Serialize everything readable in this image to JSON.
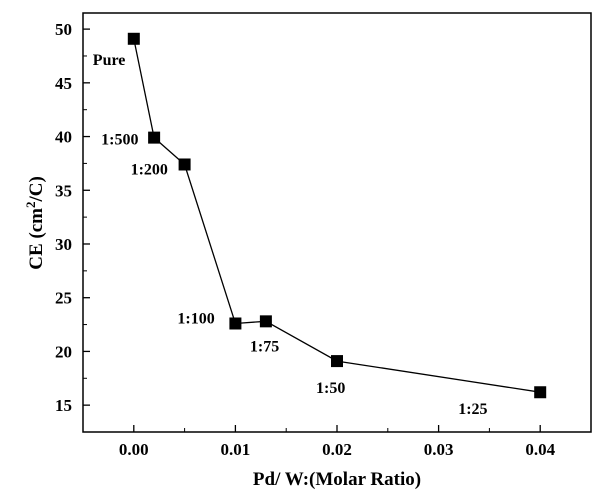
{
  "chart_data": {
    "type": "line",
    "xlabel": "Pd/ W:(Molar Ratio)",
    "ylabel_main": "CE (cm",
    "ylabel_sup": "2",
    "ylabel_tail": "/C)",
    "xlim": [
      -0.005,
      0.045
    ],
    "ylim": [
      12.5,
      51.5
    ],
    "xticks": [
      0.0,
      0.01,
      0.02,
      0.03,
      0.04
    ],
    "xtick_labels": [
      "0.00",
      "0.01",
      "0.02",
      "0.03",
      "0.04"
    ],
    "yticks": [
      15,
      20,
      25,
      30,
      35,
      40,
      45,
      50
    ],
    "ytick_labels": [
      "15",
      "20",
      "25",
      "30",
      "35",
      "40",
      "45",
      "50"
    ],
    "marker": "square",
    "grid": false,
    "series": [
      {
        "x": [
          0.0,
          0.002,
          0.005,
          0.01,
          0.013,
          0.02,
          0.04
        ],
        "y": [
          49.1,
          39.9,
          37.4,
          22.6,
          22.8,
          19.1,
          16.2
        ],
        "labels": [
          "Pure",
          "1:500",
          "1:200",
          "1:100",
          "1:75",
          "1:50",
          "1:25"
        ]
      }
    ]
  }
}
